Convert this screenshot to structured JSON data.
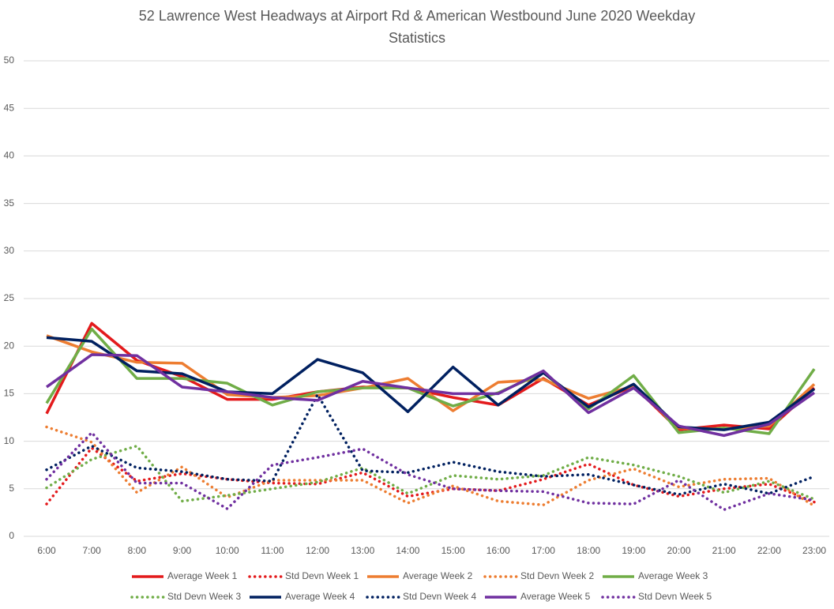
{
  "chart_data": {
    "type": "line",
    "title": "52 Lawrence West Headways at Airport Rd & American Westbound June 2020 Weekday Statistics",
    "categories": [
      "6:00",
      "7:00",
      "8:00",
      "9:00",
      "10:00",
      "11:00",
      "12:00",
      "13:00",
      "14:00",
      "15:00",
      "16:00",
      "17:00",
      "18:00",
      "19:00",
      "20:00",
      "21:00",
      "22:00",
      "23:00"
    ],
    "ylim": [
      0,
      50
    ],
    "yticks": [
      0,
      5,
      10,
      15,
      20,
      25,
      30,
      35,
      40,
      45,
      50
    ],
    "grid": true,
    "legend": "bottom",
    "series": [
      {
        "name": "Average Week 1",
        "color": "#e31a1c",
        "style": "solid",
        "values": [
          12.9,
          22.4,
          18.5,
          16.8,
          14.4,
          14.4,
          15.2,
          15.7,
          15.6,
          14.6,
          13.8,
          16.6,
          13.8,
          15.8,
          11.2,
          11.7,
          11.3,
          15.6
        ]
      },
      {
        "name": "Std Devn Week 1",
        "color": "#e31a1c",
        "style": "dotted",
        "values": [
          3.4,
          9.3,
          5.8,
          6.6,
          6.0,
          5.6,
          5.5,
          6.7,
          4.2,
          5.0,
          4.8,
          6.0,
          7.6,
          5.4,
          4.2,
          5.0,
          5.5,
          3.6
        ]
      },
      {
        "name": "Average Week 2",
        "color": "#ed7d31",
        "style": "solid",
        "values": [
          21.1,
          19.4,
          18.3,
          18.2,
          14.9,
          14.6,
          14.8,
          15.6,
          16.6,
          13.2,
          16.2,
          16.5,
          14.5,
          15.8,
          11.4,
          11.3,
          11.6,
          16.0
        ]
      },
      {
        "name": "Std Devn Week 2",
        "color": "#ed7d31",
        "style": "dotted",
        "values": [
          11.5,
          9.9,
          4.6,
          7.3,
          4.1,
          5.9,
          5.9,
          5.9,
          3.5,
          5.3,
          3.7,
          3.3,
          5.9,
          7.1,
          5.2,
          6.0,
          6.1,
          3.2
        ]
      },
      {
        "name": "Average Week 3",
        "color": "#70ad47",
        "style": "solid",
        "values": [
          14.0,
          21.8,
          16.6,
          16.6,
          16.1,
          13.8,
          15.2,
          15.6,
          15.6,
          13.7,
          15.1,
          17.2,
          13.4,
          16.9,
          10.9,
          11.4,
          10.8,
          17.6
        ]
      },
      {
        "name": "Std Devn Week 3",
        "color": "#70ad47",
        "style": "dotted",
        "values": [
          5.1,
          8.1,
          9.5,
          3.7,
          4.3,
          5.0,
          5.7,
          7.2,
          4.5,
          6.4,
          6.0,
          6.4,
          8.3,
          7.5,
          6.3,
          4.6,
          5.8,
          3.9
        ]
      },
      {
        "name": "Average Week 4",
        "color": "#002060",
        "style": "solid",
        "values": [
          20.9,
          20.5,
          17.4,
          17.1,
          15.2,
          15.0,
          18.6,
          17.2,
          13.1,
          17.8,
          13.8,
          17.2,
          13.6,
          16.0,
          11.5,
          11.2,
          12.0,
          15.5
        ]
      },
      {
        "name": "Std Devn Week 4",
        "color": "#002060",
        "style": "dotted",
        "values": [
          7.0,
          9.5,
          7.2,
          6.8,
          6.0,
          5.8,
          14.9,
          6.9,
          6.7,
          7.8,
          6.8,
          6.3,
          6.5,
          5.4,
          4.4,
          5.5,
          4.5,
          6.3
        ]
      },
      {
        "name": "Average Week 5",
        "color": "#7030a0",
        "style": "solid",
        "values": [
          15.7,
          19.1,
          19.0,
          15.7,
          15.2,
          14.6,
          14.3,
          16.3,
          15.6,
          15.0,
          15.0,
          17.4,
          13.0,
          15.6,
          11.6,
          10.6,
          11.8,
          15.1
        ]
      },
      {
        "name": "Std Devn Week 5",
        "color": "#7030a0",
        "style": "dotted",
        "values": [
          6.0,
          10.9,
          5.6,
          5.6,
          2.9,
          7.5,
          8.3,
          9.2,
          6.5,
          5.0,
          4.8,
          4.7,
          3.5,
          3.4,
          5.9,
          2.8,
          4.5,
          3.8
        ]
      }
    ]
  }
}
